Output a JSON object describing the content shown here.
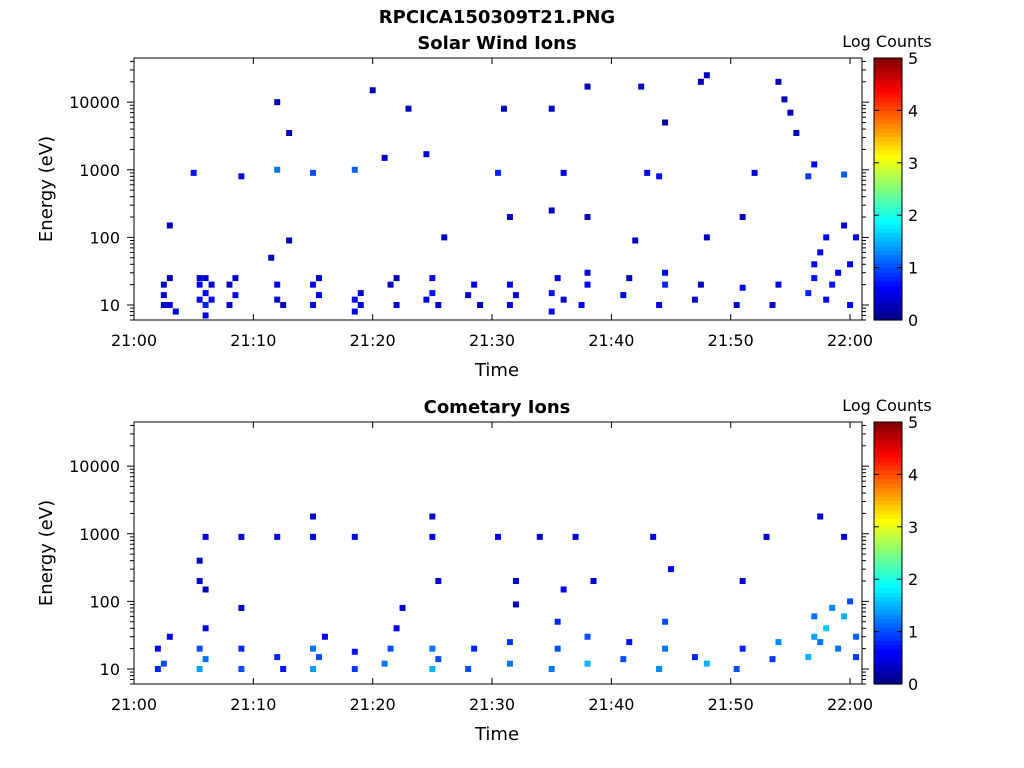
{
  "figure": {
    "title": "RPCICA150309T21.PNG"
  },
  "chart_data": [
    {
      "type": "heatmap",
      "title": "Solar Wind Ions",
      "xlabel": "Time",
      "ylabel": "Energy (eV)",
      "xlim": [
        "21:00",
        "22:01"
      ],
      "ylim": [
        6,
        45000
      ],
      "y_scale": "log",
      "x_ticks": [
        "21:00",
        "21:10",
        "21:20",
        "21:30",
        "21:40",
        "21:50",
        "22:00"
      ],
      "y_ticks": [
        "10",
        "100",
        "1000",
        "10000"
      ],
      "colorbar": {
        "label": "Log Counts",
        "min": 0,
        "max": 5,
        "ticks": [
          "0",
          "1",
          "2",
          "3",
          "4",
          "5"
        ],
        "colormap": "jet"
      },
      "cells": [
        [
          2.5,
          10,
          0.3
        ],
        [
          2.5,
          14,
          0.4
        ],
        [
          2.5,
          20,
          0.3
        ],
        [
          3,
          10,
          0.5
        ],
        [
          3,
          25,
          0.3
        ],
        [
          3.5,
          8,
          0.4
        ],
        [
          5.5,
          12,
          0.6
        ],
        [
          5.5,
          20,
          0.5
        ],
        [
          5.5,
          25,
          0.4
        ],
        [
          6,
          7,
          0.5
        ],
        [
          6,
          10,
          0.8
        ],
        [
          6,
          15,
          0.6
        ],
        [
          6,
          25,
          0.4
        ],
        [
          6.5,
          12,
          0.5
        ],
        [
          6.5,
          20,
          0.4
        ],
        [
          8,
          10,
          0.4
        ],
        [
          8,
          20,
          0.3
        ],
        [
          8.5,
          14,
          0.5
        ],
        [
          8.5,
          25,
          0.4
        ],
        [
          12,
          12,
          0.4
        ],
        [
          12,
          20,
          0.5
        ],
        [
          12.5,
          10,
          0.3
        ],
        [
          15,
          10,
          0.6
        ],
        [
          15,
          20,
          0.5
        ],
        [
          15.5,
          14,
          0.6
        ],
        [
          15.5,
          25,
          0.4
        ],
        [
          18.5,
          8,
          0.5
        ],
        [
          18.5,
          12,
          0.6
        ],
        [
          19,
          10,
          0.5
        ],
        [
          19,
          15,
          0.4
        ],
        [
          21.5,
          20,
          0.3
        ],
        [
          22,
          10,
          0.4
        ],
        [
          22,
          25,
          0.3
        ],
        [
          24.5,
          12,
          0.5
        ],
        [
          25,
          15,
          0.7
        ],
        [
          25,
          25,
          0.5
        ],
        [
          25.5,
          10,
          0.4
        ],
        [
          28,
          14,
          0.4
        ],
        [
          28.5,
          20,
          0.5
        ],
        [
          29,
          10,
          0.3
        ],
        [
          31.5,
          10,
          0.6
        ],
        [
          31.5,
          20,
          0.5
        ],
        [
          32,
          14,
          0.4
        ],
        [
          35,
          8,
          0.6
        ],
        [
          35,
          15,
          0.7
        ],
        [
          35.5,
          25,
          0.5
        ],
        [
          36,
          12,
          0.4
        ],
        [
          37.5,
          10,
          0.5
        ],
        [
          38,
          20,
          0.6
        ],
        [
          38,
          30,
          0.4
        ],
        [
          41,
          14,
          0.4
        ],
        [
          41.5,
          25,
          0.3
        ],
        [
          44,
          10,
          0.5
        ],
        [
          44.5,
          20,
          0.8
        ],
        [
          44.5,
          30,
          0.6
        ],
        [
          47,
          12,
          0.4
        ],
        [
          47.5,
          20,
          0.3
        ],
        [
          50.5,
          10,
          0.4
        ],
        [
          51,
          18,
          0.5
        ],
        [
          53.5,
          10,
          0.4
        ],
        [
          54,
          20,
          0.5
        ],
        [
          56.5,
          15,
          0.8
        ],
        [
          57,
          25,
          0.7
        ],
        [
          57,
          40,
          0.6
        ],
        [
          57.5,
          60,
          0.5
        ],
        [
          58,
          100,
          0.6
        ],
        [
          58,
          12,
          0.6
        ],
        [
          58.5,
          20,
          0.7
        ],
        [
          59,
          30,
          0.6
        ],
        [
          59.5,
          150,
          0.5
        ],
        [
          60,
          10,
          0.6
        ],
        [
          60,
          40,
          0.5
        ],
        [
          60.5,
          100,
          0.4
        ],
        [
          5,
          900,
          0.7
        ],
        [
          9,
          800,
          0.5
        ],
        [
          12,
          1000,
          1.2
        ],
        [
          15,
          900,
          1.0
        ],
        [
          18.5,
          1000,
          1.1
        ],
        [
          21,
          1500,
          0.4
        ],
        [
          24.5,
          1700,
          0.5
        ],
        [
          30.5,
          900,
          0.8
        ],
        [
          36,
          900,
          0.5
        ],
        [
          43,
          900,
          0.6
        ],
        [
          44,
          800,
          0.7
        ],
        [
          52,
          900,
          0.4
        ],
        [
          56.5,
          800,
          0.9
        ],
        [
          57,
          1200,
          0.6
        ],
        [
          59.5,
          850,
          1.1
        ],
        [
          3,
          150,
          0.3
        ],
        [
          11.5,
          50,
          0.3
        ],
        [
          13,
          90,
          0.3
        ],
        [
          26,
          100,
          0.3
        ],
        [
          31.5,
          200,
          0.4
        ],
        [
          35,
          250,
          0.3
        ],
        [
          38,
          200,
          0.3
        ],
        [
          42,
          90,
          0.3
        ],
        [
          48,
          100,
          0.3
        ],
        [
          51,
          200,
          0.3
        ],
        [
          12,
          10000,
          0.3
        ],
        [
          13,
          3500,
          0.3
        ],
        [
          20,
          15000,
          0.3
        ],
        [
          23,
          8000,
          0.3
        ],
        [
          31,
          8000,
          0.3
        ],
        [
          35,
          8000,
          0.3
        ],
        [
          38,
          17000,
          0.3
        ],
        [
          42.5,
          17000,
          0.3
        ],
        [
          44.5,
          5000,
          0.3
        ],
        [
          47.5,
          20000,
          0.3
        ],
        [
          48,
          25000,
          0.3
        ],
        [
          54,
          20000,
          0.3
        ],
        [
          54.5,
          11000,
          0.3
        ],
        [
          55,
          7000,
          0.3
        ],
        [
          55.5,
          3500,
          0.3
        ]
      ]
    },
    {
      "type": "heatmap",
      "title": "Cometary Ions",
      "xlabel": "Time",
      "ylabel": "Energy (eV)",
      "xlim": [
        "21:00",
        "22:01"
      ],
      "ylim": [
        6,
        45000
      ],
      "y_scale": "log",
      "x_ticks": [
        "21:00",
        "21:10",
        "21:20",
        "21:30",
        "21:40",
        "21:50",
        "22:00"
      ],
      "y_ticks": [
        "10",
        "100",
        "1000",
        "10000"
      ],
      "colorbar": {
        "label": "Log Counts",
        "min": 0,
        "max": 5,
        "ticks": [
          "0",
          "1",
          "2",
          "3",
          "4",
          "5"
        ],
        "colormap": "jet"
      },
      "cells": [
        [
          2,
          10,
          0.8
        ],
        [
          2,
          20,
          0.6
        ],
        [
          2.5,
          12,
          1.0
        ],
        [
          3,
          30,
          0.5
        ],
        [
          5.5,
          10,
          1.4
        ],
        [
          5.5,
          20,
          1.0
        ],
        [
          6,
          14,
          1.2
        ],
        [
          6,
          40,
          0.6
        ],
        [
          5.5,
          200,
          0.4
        ],
        [
          5.5,
          400,
          0.3
        ],
        [
          6,
          150,
          0.3
        ],
        [
          9,
          10,
          1.0
        ],
        [
          9,
          20,
          0.8
        ],
        [
          9,
          80,
          0.3
        ],
        [
          12,
          15,
          0.8
        ],
        [
          12.5,
          10,
          0.7
        ],
        [
          15,
          10,
          1.4
        ],
        [
          15,
          20,
          1.2
        ],
        [
          15.5,
          15,
          1.0
        ],
        [
          16,
          30,
          0.6
        ],
        [
          18.5,
          10,
          0.9
        ],
        [
          18.5,
          18,
          0.7
        ],
        [
          21,
          12,
          1.2
        ],
        [
          21.5,
          20,
          1.0
        ],
        [
          22,
          40,
          0.6
        ],
        [
          22.5,
          80,
          0.4
        ],
        [
          25,
          10,
          1.5
        ],
        [
          25,
          20,
          1.2
        ],
        [
          25.5,
          14,
          1.0
        ],
        [
          25.5,
          200,
          0.4
        ],
        [
          28,
          10,
          1.0
        ],
        [
          28.5,
          20,
          0.8
        ],
        [
          31.5,
          12,
          1.2
        ],
        [
          31.5,
          25,
          0.9
        ],
        [
          32,
          200,
          0.4
        ],
        [
          32,
          90,
          0.3
        ],
        [
          35,
          10,
          1.2
        ],
        [
          35.5,
          20,
          1.0
        ],
        [
          35.5,
          50,
          0.8
        ],
        [
          36,
          150,
          0.5
        ],
        [
          38,
          12,
          1.5
        ],
        [
          38,
          30,
          1.0
        ],
        [
          38.5,
          200,
          0.4
        ],
        [
          41,
          14,
          1.0
        ],
        [
          41.5,
          25,
          0.7
        ],
        [
          44,
          10,
          1.3
        ],
        [
          44.5,
          20,
          1.2
        ],
        [
          44.5,
          50,
          1.0
        ],
        [
          45,
          300,
          0.6
        ],
        [
          47,
          15,
          0.8
        ],
        [
          48,
          12,
          1.5
        ],
        [
          50.5,
          10,
          1.0
        ],
        [
          51,
          20,
          0.8
        ],
        [
          51,
          200,
          0.4
        ],
        [
          53.5,
          14,
          0.9
        ],
        [
          54,
          25,
          1.3
        ],
        [
          56.5,
          15,
          1.5
        ],
        [
          57,
          30,
          1.4
        ],
        [
          57,
          60,
          1.2
        ],
        [
          57.5,
          25,
          1.2
        ],
        [
          58,
          40,
          1.6
        ],
        [
          58.5,
          80,
          1.3
        ],
        [
          59,
          20,
          1.2
        ],
        [
          59.5,
          60,
          1.5
        ],
        [
          60,
          100,
          1.0
        ],
        [
          60.5,
          30,
          1.1
        ],
        [
          60.5,
          15,
          0.9
        ],
        [
          6,
          900,
          0.5
        ],
        [
          9,
          900,
          0.4
        ],
        [
          12,
          900,
          0.5
        ],
        [
          15,
          900,
          0.6
        ],
        [
          15,
          1800,
          0.4
        ],
        [
          18.5,
          900,
          0.5
        ],
        [
          25,
          1800,
          0.4
        ],
        [
          25,
          900,
          0.5
        ],
        [
          30.5,
          900,
          0.6
        ],
        [
          34,
          900,
          0.4
        ],
        [
          37,
          900,
          0.4
        ],
        [
          43.5,
          900,
          0.5
        ],
        [
          53,
          900,
          0.4
        ],
        [
          57.5,
          1800,
          0.4
        ],
        [
          59.5,
          900,
          0.5
        ]
      ]
    }
  ]
}
